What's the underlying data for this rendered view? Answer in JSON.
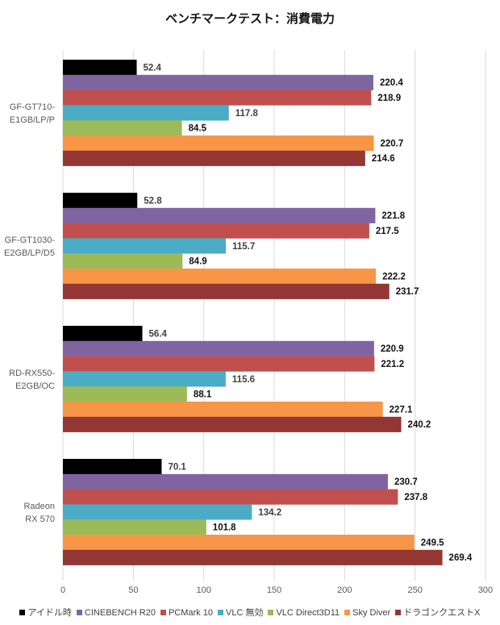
{
  "chart_data": {
    "type": "bar",
    "orientation": "horizontal",
    "title": "ベンチマークテスト：消費電力",
    "xlabel": "",
    "ylabel": "",
    "xlim": [
      0,
      300
    ],
    "xticks": [
      0,
      50,
      100,
      150,
      200,
      250,
      300
    ],
    "grid": true,
    "legend_position": "bottom",
    "categories": [
      [
        "GF-GT710-",
        "E1GB/LP/P"
      ],
      [
        "GF-GT1030-",
        "E2GB/LP/D5"
      ],
      [
        "RD-RX550-",
        "E2GB/OC"
      ],
      [
        "Radeon",
        "RX 570"
      ]
    ],
    "series": [
      {
        "name": "アイドル時",
        "color": "#000000",
        "values": [
          52.4,
          52.8,
          56.4,
          70.1
        ]
      },
      {
        "name": "CINEBENCH R20",
        "color": "#8064A2",
        "values": [
          220.4,
          221.8,
          220.9,
          230.7
        ]
      },
      {
        "name": "PCMark 10",
        "color": "#C0504D",
        "values": [
          218.9,
          217.5,
          221.2,
          237.8
        ]
      },
      {
        "name": "VLC 無効",
        "color": "#4BACC6",
        "values": [
          117.8,
          115.7,
          115.6,
          134.2
        ]
      },
      {
        "name": "VLC Direct3D11",
        "color": "#9BBB59",
        "values": [
          84.5,
          84.9,
          88.1,
          101.8
        ]
      },
      {
        "name": "Sky Diver",
        "color": "#F79646",
        "values": [
          220.7,
          222.2,
          227.1,
          249.5
        ]
      },
      {
        "name": "ドラゴンクエストX",
        "color": "#943634",
        "values": [
          214.6,
          231.7,
          240.2,
          269.4
        ]
      }
    ]
  }
}
